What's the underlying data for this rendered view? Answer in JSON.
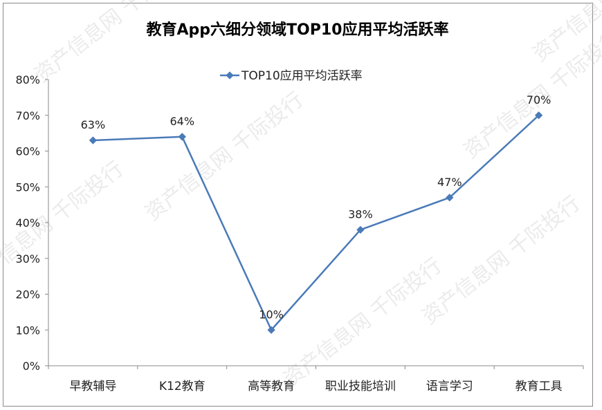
{
  "chart_data": {
    "type": "line",
    "title": "教育App六细分领域TOP10应用平均活跃率",
    "categories": [
      "早教辅导",
      "K12教育",
      "高等教育",
      "职业技能培训",
      "语言学习",
      "教育工具"
    ],
    "series": [
      {
        "name": "TOP10应用平均活跃率",
        "values": [
          63,
          64,
          10,
          38,
          47,
          70
        ],
        "labels": [
          "63%",
          "64%",
          "10%",
          "38%",
          "47%",
          "70%"
        ]
      }
    ],
    "ylim": [
      0,
      80
    ],
    "yticks": [
      "0%",
      "10%",
      "20%",
      "30%",
      "40%",
      "50%",
      "60%",
      "70%",
      "80%"
    ],
    "xlabel": "",
    "ylabel": "",
    "grid": false,
    "legend": "top-center",
    "line_color": "#4a7ab8"
  },
  "watermark": "资产信息网 千际投行"
}
